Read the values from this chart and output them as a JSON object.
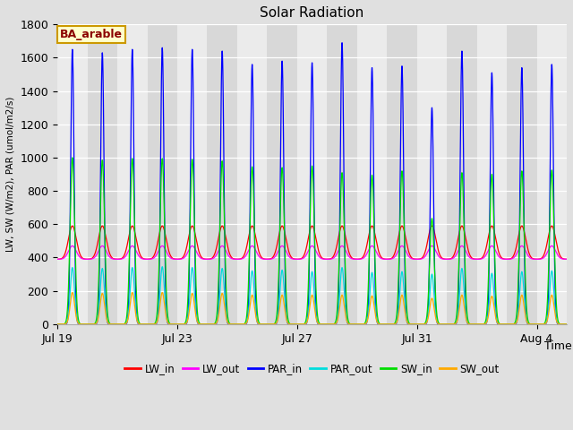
{
  "title": "Solar Radiation",
  "ylabel": "LW, SW (W/m2), PAR (umol/m2/s)",
  "xlabel": "Time",
  "annotation": "BA_arable",
  "ylim": [
    0,
    1800
  ],
  "n_days": 17,
  "points_per_day": 288,
  "xtick_labels": [
    "Jul 19",
    "Jul 23",
    "Jul 27",
    "Jul 31",
    "Aug 4"
  ],
  "xtick_positions": [
    0,
    4,
    8,
    12,
    16
  ],
  "series": {
    "LW_in": {
      "color": "#ff0000",
      "lw": 0.9
    },
    "LW_out": {
      "color": "#ff00ff",
      "lw": 0.9
    },
    "PAR_in": {
      "color": "#0000ff",
      "lw": 0.9
    },
    "PAR_out": {
      "color": "#00dddd",
      "lw": 0.9
    },
    "SW_in": {
      "color": "#00dd00",
      "lw": 0.9
    },
    "SW_out": {
      "color": "#ffaa00",
      "lw": 0.9
    }
  },
  "fig_bg": "#e0e0e0",
  "plot_bg": "#e8e8e8",
  "grid_color": "#ffffff",
  "band_color_light": "#ebebeb",
  "band_color_dark": "#d8d8d8",
  "PAR_in_peaks": [
    1650,
    1630,
    1650,
    1660,
    1650,
    1640,
    1560,
    1580,
    1570,
    1690,
    1540,
    1550,
    1300,
    1640,
    1510,
    1540,
    1560
  ],
  "PAR_out_peaks": [
    340,
    335,
    340,
    345,
    340,
    335,
    320,
    325,
    315,
    340,
    310,
    315,
    300,
    335,
    305,
    315,
    320
  ],
  "SW_in_peaks": [
    1000,
    985,
    995,
    995,
    990,
    980,
    945,
    940,
    950,
    910,
    895,
    920,
    635,
    910,
    900,
    920,
    925
  ],
  "SW_out_peaks": [
    190,
    185,
    190,
    190,
    185,
    185,
    175,
    175,
    175,
    175,
    170,
    175,
    155,
    175,
    168,
    175,
    175
  ],
  "LW_in_base": 390,
  "LW_in_peak": 590,
  "LW_out_base": 390,
  "LW_out_peak": 470,
  "LW_sigma": 0.13,
  "PAR_sigma": 0.055,
  "SW_sigma": 0.075,
  "PAR_out_sigma": 0.07,
  "day_start": 0.25,
  "day_end": 0.75
}
